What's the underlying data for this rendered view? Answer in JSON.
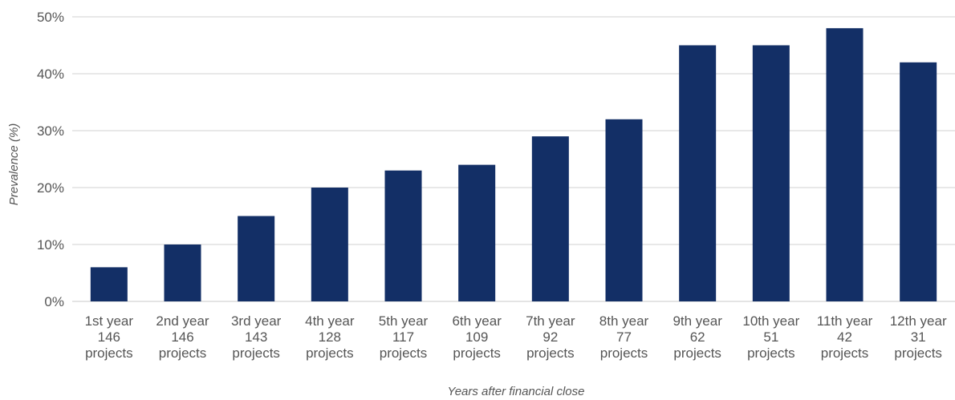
{
  "chart_data": {
    "type": "bar",
    "categories": [
      "1st year",
      "2nd year",
      "3rd year",
      "4th year",
      "5th year",
      "6th year",
      "7th year",
      "8th year",
      "9th year",
      "10th year",
      "11th year",
      "12th year"
    ],
    "subcategories": [
      "146",
      "146",
      "143",
      "128",
      "117",
      "109",
      "92",
      "77",
      "62",
      "51",
      "42",
      "31"
    ],
    "subcategory_unit": "projects",
    "values": [
      6,
      10,
      15,
      20,
      23,
      24,
      29,
      32,
      45,
      45,
      48,
      42
    ],
    "ylim": [
      0,
      50
    ],
    "yticks": [
      0,
      10,
      20,
      30,
      40,
      50
    ],
    "ytick_labels": [
      "0%",
      "10%",
      "20%",
      "30%",
      "40%",
      "50%"
    ],
    "xlabel": "Years after financial close",
    "ylabel": "Prevalence (%)",
    "grid": "horizontal",
    "bar_color": "#132f66",
    "grid_color": "#d0d0d0"
  }
}
